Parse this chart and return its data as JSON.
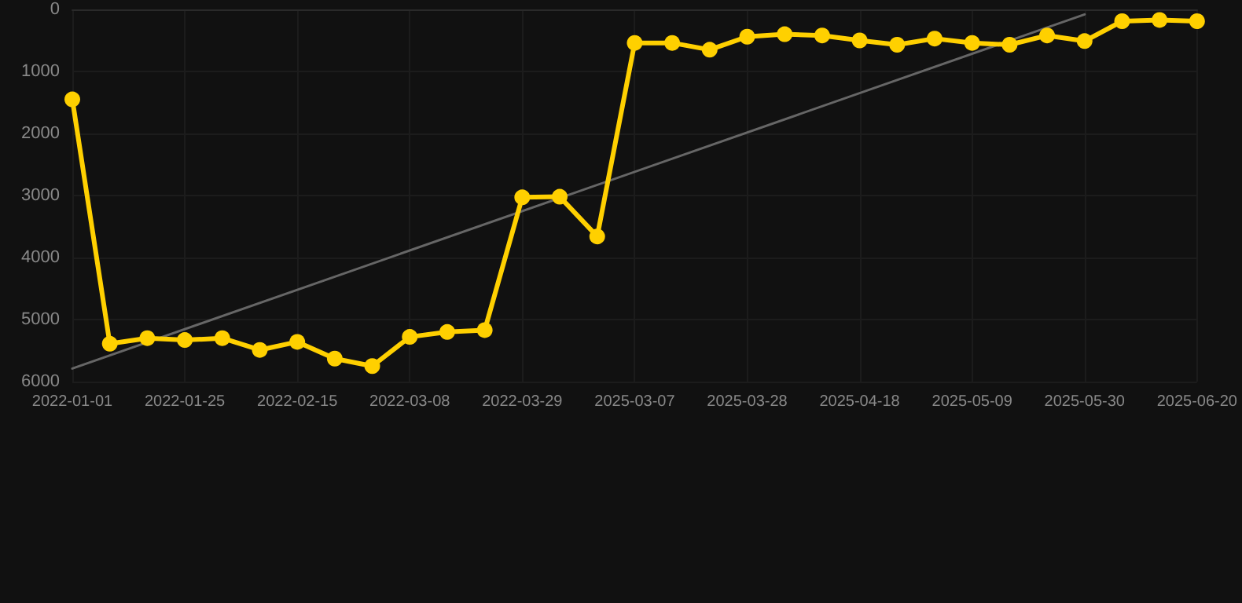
{
  "chart_data": {
    "type": "line",
    "categories": [
      "2022-01-01",
      null,
      null,
      "2022-01-25",
      null,
      null,
      "2022-02-15",
      null,
      null,
      "2022-03-08",
      null,
      null,
      "2022-03-29",
      null,
      null,
      "2025-03-07",
      null,
      null,
      "2025-03-28",
      null,
      null,
      "2025-04-18",
      null,
      null,
      "2025-05-09",
      null,
      null,
      "2025-05-30",
      null,
      null,
      "2025-06-20"
    ],
    "series": [
      {
        "color": "#ffd000",
        "marker": "circle",
        "values": [
          1450,
          5390,
          5300,
          5330,
          5300,
          5490,
          5360,
          5630,
          5750,
          5280,
          5200,
          5170,
          3030,
          3020,
          3660,
          540,
          540,
          650,
          440,
          400,
          420,
          500,
          570,
          470,
          540,
          570,
          420,
          510,
          190,
          170,
          190
        ]
      },
      {
        "color": "#666666",
        "marker": "none",
        "values": [
          5790,
          null,
          null,
          null,
          null,
          null,
          null,
          null,
          null,
          null,
          null,
          null,
          null,
          null,
          null,
          null,
          null,
          null,
          null,
          null,
          null,
          null,
          null,
          null,
          null,
          null,
          null,
          80,
          null,
          null,
          null
        ]
      }
    ],
    "ylim": [
      6000,
      0
    ],
    "yticks": [
      0,
      1000,
      2000,
      3000,
      4000,
      5000,
      6000
    ],
    "grid": true
  }
}
